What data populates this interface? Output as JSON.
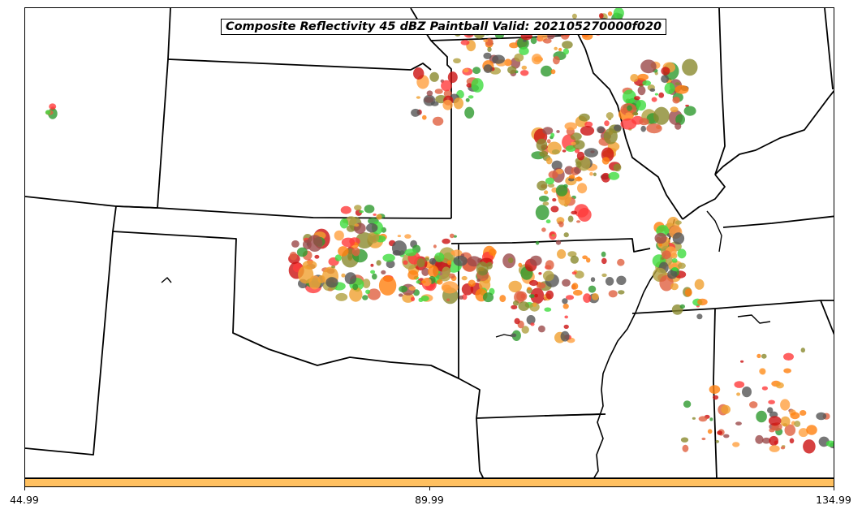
{
  "title": "Composite Reflectivity 45 dBZ Paintball Valid: 202105270000f020",
  "map": {
    "region": "south-central United States",
    "boundaries": [
      "state-lines",
      "mississippi-river"
    ],
    "background": "#ffffff",
    "boundary_color": "#000000"
  },
  "paintball_colors": [
    "#ff3b3b",
    "#cc1111",
    "#ff7f0e",
    "#ffa040",
    "#f0a030",
    "#3fdc3f",
    "#2e9a2e",
    "#8a8a2e",
    "#b0a040",
    "#9b4a4a",
    "#555555",
    "#e06040"
  ],
  "colorbar": {
    "color": "#ffc060",
    "min_label": "44.99",
    "mid_label": "89.99",
    "max_label": "134.99"
  }
}
